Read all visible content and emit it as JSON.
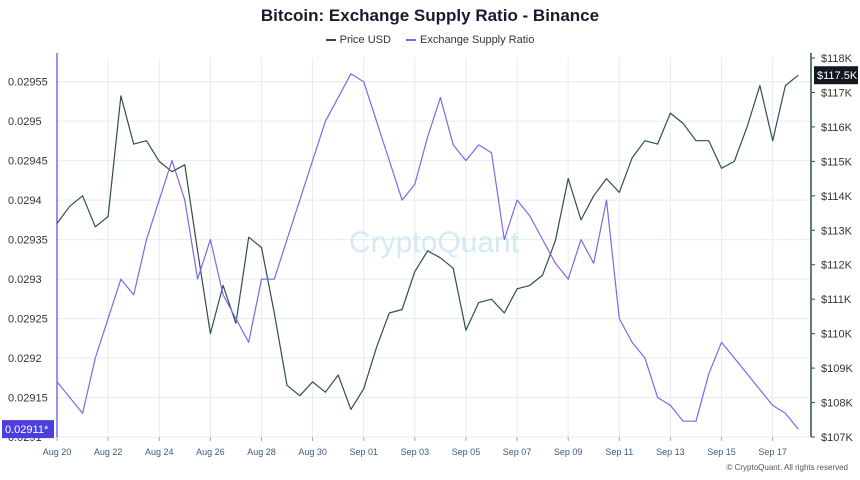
{
  "title": "Bitcoin: Exchange Supply Ratio - Binance",
  "credit": "© CryptoQuant. All rights reserved",
  "watermark": "CryptoQuant",
  "colors": {
    "price": "#2f4f4f",
    "ratio": "#7b68ee",
    "leftAxis": "#7b68ee",
    "rightAxis": "#2f4f4f",
    "grid": "#e6ebf1"
  },
  "chart_data": {
    "type": "line",
    "title": "Bitcoin: Exchange Supply Ratio - Binance",
    "x_axis": {
      "type": "date",
      "range": [
        "2025-08-20",
        "2025-09-18"
      ],
      "ticks": [
        "Aug 20",
        "Aug 22",
        "Aug 24",
        "Aug 26",
        "Aug 28",
        "Aug 30",
        "Sep 01",
        "Sep 03",
        "Sep 05",
        "Sep 07",
        "Sep 09",
        "Sep 11",
        "Sep 13",
        "Sep 15",
        "Sep 17"
      ],
      "tick_dates": [
        0,
        2,
        4,
        6,
        8,
        10,
        12,
        14,
        16,
        18,
        20,
        22,
        24,
        26,
        28
      ]
    },
    "y_left": {
      "range": [
        0.0291,
        0.02958
      ],
      "ticks": [
        "0.0291",
        "0.02915",
        "0.0292",
        "0.02925",
        "0.0293",
        "0.02935",
        "0.0294",
        "0.02945",
        "0.0295",
        "0.02955"
      ],
      "tick_values": [
        0.0291,
        0.02915,
        0.0292,
        0.02925,
        0.0293,
        0.02935,
        0.0294,
        0.02945,
        0.0295,
        0.02955
      ]
    },
    "y_right": {
      "range": [
        107000,
        118000
      ],
      "ticks": [
        "$107K",
        "$108K",
        "$109K",
        "$110K",
        "$111K",
        "$112K",
        "$113K",
        "$114K",
        "$115K",
        "$116K",
        "$117K",
        "$118K"
      ],
      "tick_values": [
        107000,
        108000,
        109000,
        110000,
        111000,
        112000,
        113000,
        114000,
        115000,
        116000,
        117000,
        118000
      ]
    },
    "series": [
      {
        "name": "Price USD",
        "axis": "right",
        "color": "#2f4f4f",
        "x": [
          0,
          0.5,
          1,
          1.5,
          2,
          2.5,
          3,
          3.5,
          4,
          4.5,
          5,
          5.5,
          6,
          6.5,
          7,
          7.5,
          8,
          8.5,
          9,
          9.5,
          10,
          10.5,
          11,
          11.5,
          12,
          12.5,
          13,
          13.5,
          14,
          14.5,
          15,
          15.5,
          16,
          16.5,
          17,
          17.5,
          18,
          18.5,
          19,
          19.5,
          20,
          20.5,
          21,
          21.5,
          22,
          22.5,
          23,
          23.5,
          24,
          24.5,
          25,
          25.5,
          26,
          26.5,
          27,
          27.5,
          28,
          28.5,
          29
        ],
        "values": [
          113200,
          113700,
          114000,
          113100,
          113400,
          116900,
          115500,
          115600,
          115000,
          114700,
          114900,
          112400,
          110000,
          111400,
          110300,
          112800,
          112500,
          110600,
          108500,
          108200,
          108600,
          108300,
          108800,
          107800,
          108400,
          109600,
          110600,
          110700,
          111800,
          112400,
          112200,
          111900,
          110100,
          110900,
          111000,
          110600,
          111300,
          111400,
          111700,
          112700,
          114500,
          113300,
          114000,
          114500,
          114100,
          115100,
          115600,
          115500,
          116400,
          116100,
          115600,
          115600,
          114800,
          115000,
          116000,
          117200,
          115600,
          117200,
          117500
        ]
      },
      {
        "name": "Exchange Supply Ratio",
        "axis": "left",
        "color": "#7b68ee",
        "x": [
          0,
          0.5,
          1,
          1.5,
          2,
          2.5,
          3,
          3.5,
          4,
          4.5,
          5,
          5.5,
          6,
          6.5,
          7,
          7.5,
          8,
          8.5,
          9,
          9.5,
          10,
          10.5,
          11,
          11.5,
          12,
          12.5,
          13,
          13.5,
          14,
          14.5,
          15,
          15.5,
          16,
          16.5,
          17,
          17.5,
          18,
          18.5,
          19,
          19.5,
          20,
          20.5,
          21,
          21.5,
          22,
          22.5,
          23,
          23.5,
          24,
          24.5,
          25,
          25.5,
          26,
          26.5,
          27,
          27.5,
          28,
          28.5,
          29
        ],
        "values": [
          0.02917,
          0.02915,
          0.02913,
          0.0292,
          0.02925,
          0.0293,
          0.02928,
          0.02935,
          0.0294,
          0.02945,
          0.0294,
          0.0293,
          0.02935,
          0.02928,
          0.02925,
          0.02922,
          0.0293,
          0.0293,
          0.02935,
          0.0294,
          0.02945,
          0.0295,
          0.02953,
          0.02956,
          0.02955,
          0.0295,
          0.02945,
          0.0294,
          0.02942,
          0.02948,
          0.02953,
          0.02947,
          0.02945,
          0.02947,
          0.02946,
          0.02935,
          0.0294,
          0.02938,
          0.02935,
          0.02932,
          0.0293,
          0.02935,
          0.02932,
          0.0294,
          0.02925,
          0.02922,
          0.0292,
          0.02915,
          0.02914,
          0.02912,
          0.02912,
          0.02918,
          0.02922,
          0.0292,
          0.02918,
          0.02916,
          0.02914,
          0.02913,
          0.02911
        ]
      }
    ],
    "last_labels": {
      "left": "0.02911*",
      "right": "$117.5K"
    },
    "grid": true,
    "legend": "top-center"
  }
}
